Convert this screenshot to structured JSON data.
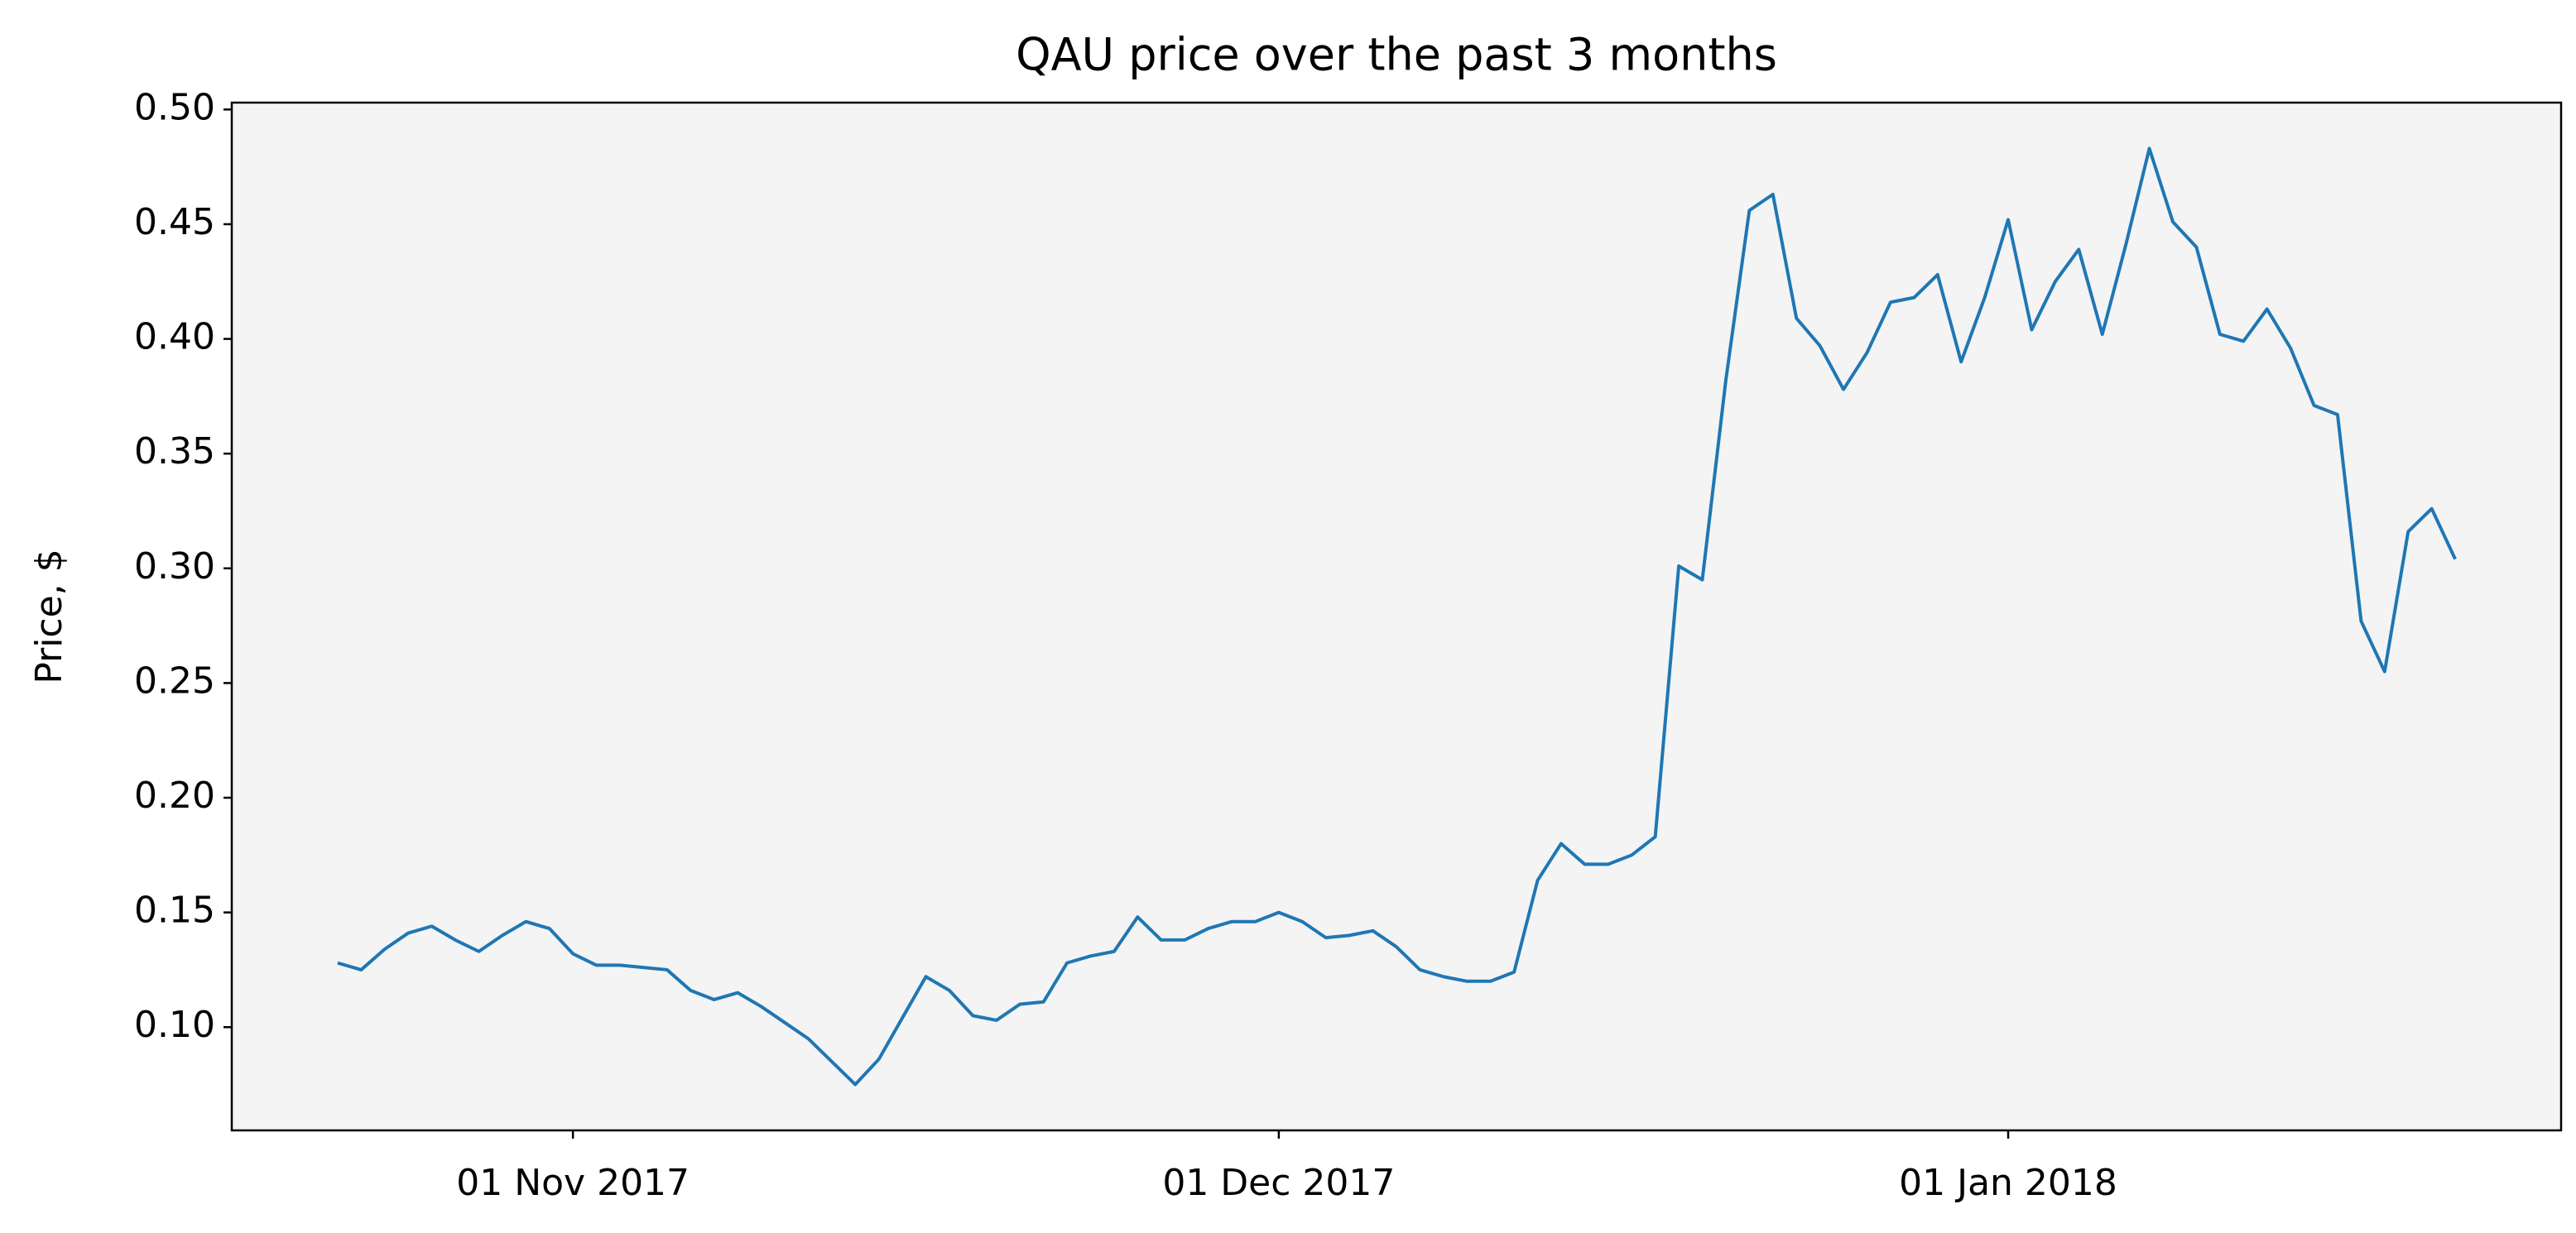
{
  "chart_data": {
    "type": "line",
    "title": "QAU price over the past 3 months",
    "ylabel": "Price, $",
    "x": [
      "2017-10-22",
      "2017-10-23",
      "2017-10-24",
      "2017-10-25",
      "2017-10-26",
      "2017-10-27",
      "2017-10-28",
      "2017-10-29",
      "2017-10-30",
      "2017-10-31",
      "2017-11-01",
      "2017-11-02",
      "2017-11-03",
      "2017-11-04",
      "2017-11-05",
      "2017-11-06",
      "2017-11-07",
      "2017-11-08",
      "2017-11-09",
      "2017-11-10",
      "2017-11-11",
      "2017-11-12",
      "2017-11-13",
      "2017-11-14",
      "2017-11-15",
      "2017-11-16",
      "2017-11-17",
      "2017-11-18",
      "2017-11-19",
      "2017-11-20",
      "2017-11-21",
      "2017-11-22",
      "2017-11-23",
      "2017-11-24",
      "2017-11-25",
      "2017-11-26",
      "2017-11-27",
      "2017-11-28",
      "2017-11-29",
      "2017-11-30",
      "2017-12-01",
      "2017-12-02",
      "2017-12-03",
      "2017-12-04",
      "2017-12-05",
      "2017-12-06",
      "2017-12-07",
      "2017-12-08",
      "2017-12-09",
      "2017-12-10",
      "2017-12-11",
      "2017-12-12",
      "2017-12-13",
      "2017-12-14",
      "2017-12-15",
      "2017-12-16",
      "2017-12-17",
      "2017-12-18",
      "2017-12-19",
      "2017-12-20",
      "2017-12-21",
      "2017-12-22",
      "2017-12-23",
      "2017-12-24",
      "2017-12-25",
      "2017-12-26",
      "2017-12-27",
      "2017-12-28",
      "2017-12-29",
      "2017-12-30",
      "2017-12-31",
      "2018-01-01",
      "2018-01-02",
      "2018-01-03",
      "2018-01-04",
      "2018-01-05",
      "2018-01-06",
      "2018-01-07",
      "2018-01-08",
      "2018-01-09",
      "2018-01-10",
      "2018-01-11",
      "2018-01-12",
      "2018-01-13",
      "2018-01-14",
      "2018-01-15",
      "2018-01-16",
      "2018-01-17",
      "2018-01-18",
      "2018-01-19",
      "2018-01-20"
    ],
    "values": [
      0.128,
      0.125,
      0.134,
      0.141,
      0.144,
      0.138,
      0.133,
      0.14,
      0.146,
      0.143,
      0.132,
      0.127,
      0.127,
      0.126,
      0.125,
      0.116,
      0.112,
      0.115,
      0.109,
      0.102,
      0.095,
      0.085,
      0.075,
      0.086,
      0.104,
      0.122,
      0.116,
      0.105,
      0.103,
      0.11,
      0.111,
      0.128,
      0.131,
      0.133,
      0.148,
      0.138,
      0.138,
      0.143,
      0.146,
      0.146,
      0.15,
      0.146,
      0.139,
      0.14,
      0.142,
      0.135,
      0.125,
      0.122,
      0.12,
      0.12,
      0.124,
      0.164,
      0.18,
      0.171,
      0.171,
      0.175,
      0.183,
      0.301,
      0.295,
      0.382,
      0.456,
      0.463,
      0.409,
      0.397,
      0.378,
      0.394,
      0.416,
      0.418,
      0.428,
      0.39,
      0.418,
      0.452,
      0.404,
      0.425,
      0.439,
      0.402,
      0.441,
      0.483,
      0.451,
      0.44,
      0.402,
      0.399,
      0.413,
      0.396,
      0.371,
      0.367,
      0.277,
      0.255,
      0.316,
      0.326,
      0.304
    ],
    "color": "#1f77b4",
    "xlim": [
      "2017-10-17T12:00:00Z",
      "2018-01-24T12:00:00Z"
    ],
    "xticks": [
      {
        "value": "2017-11-01",
        "label": "01 Nov 2017"
      },
      {
        "value": "2017-12-01",
        "label": "01 Dec 2017"
      },
      {
        "value": "2018-01-01",
        "label": "01 Jan 2018"
      }
    ],
    "ylim": [
      0.055,
      0.503
    ],
    "yticks": [
      {
        "value": 0.1,
        "label": "0.10"
      },
      0.15,
      {
        "value": 0.2,
        "label": "0.20"
      },
      0.25,
      {
        "value": 0.3,
        "label": "0.30"
      },
      0.35,
      {
        "value": 0.4,
        "label": "0.40"
      },
      0.45,
      {
        "value": 0.5,
        "label": "0.50"
      }
    ],
    "background": "#f4f4f4"
  }
}
